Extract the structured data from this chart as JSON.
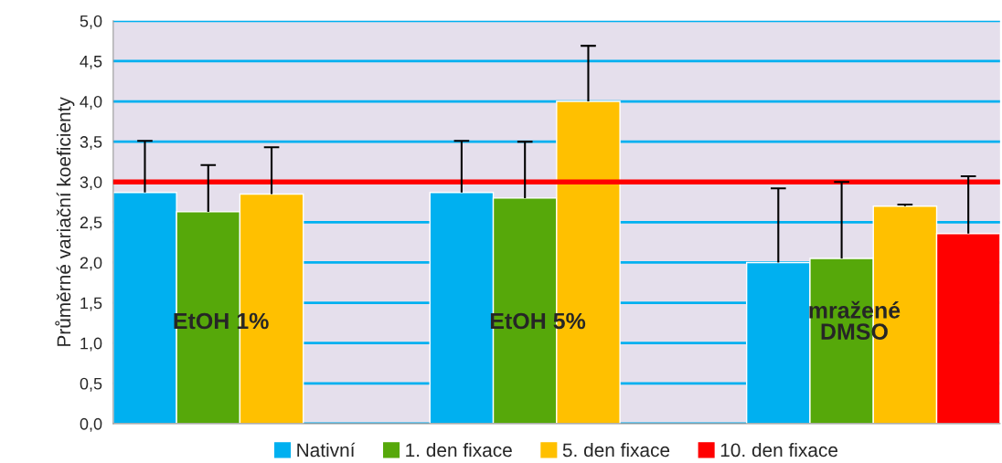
{
  "chart_data": {
    "type": "bar",
    "ylabel": "Průměrné variační koeficienty",
    "categories": [
      "EtOH 1%",
      "EtOH 5%",
      "mražené\nDMSO"
    ],
    "series": [
      {
        "name": "Nativní",
        "color": "#00b0f0",
        "values": [
          2.87,
          2.87,
          2.0
        ],
        "errors": [
          [
            2.87,
            3.51
          ],
          [
            2.87,
            3.51
          ],
          [
            2.0,
            2.92
          ]
        ]
      },
      {
        "name": "1. den fixace",
        "color": "#56a80a",
        "values": [
          2.63,
          2.8,
          2.05
        ],
        "errors": [
          [
            2.63,
            3.21
          ],
          [
            2.8,
            3.5
          ],
          [
            2.05,
            3.0
          ]
        ]
      },
      {
        "name": "5. den fixace",
        "color": "#ffc000",
        "values": [
          2.85,
          4.0,
          2.7
        ],
        "errors": [
          [
            2.85,
            3.43
          ],
          [
            4.0,
            4.69
          ],
          [
            2.7,
            2.72
          ]
        ]
      },
      {
        "name": "10. den fixace",
        "color": "#ff0000",
        "values": [
          null,
          null,
          2.36
        ],
        "errors": [
          null,
          null,
          [
            2.36,
            3.07
          ]
        ]
      }
    ],
    "ylim": [
      0,
      5
    ],
    "yticks": [
      {
        "value": 0,
        "label": "0,0"
      },
      {
        "value": 0.5,
        "label": "0,5"
      },
      {
        "value": 1,
        "label": "1,0"
      },
      {
        "value": 1.5,
        "label": "1,5"
      },
      {
        "value": 2,
        "label": "2,0"
      },
      {
        "value": 2.5,
        "label": "2,5"
      },
      {
        "value": 3,
        "label": "3,0"
      },
      {
        "value": 3.5,
        "label": "3,5"
      },
      {
        "value": 4,
        "label": "4,0"
      },
      {
        "value": 4.5,
        "label": "4,5"
      },
      {
        "value": 5,
        "label": "5,0"
      }
    ],
    "grid": "y",
    "legend": "bottom",
    "ref_lines": [
      {
        "axis": "y",
        "value": 3.0,
        "color": "#ff0000"
      }
    ]
  }
}
